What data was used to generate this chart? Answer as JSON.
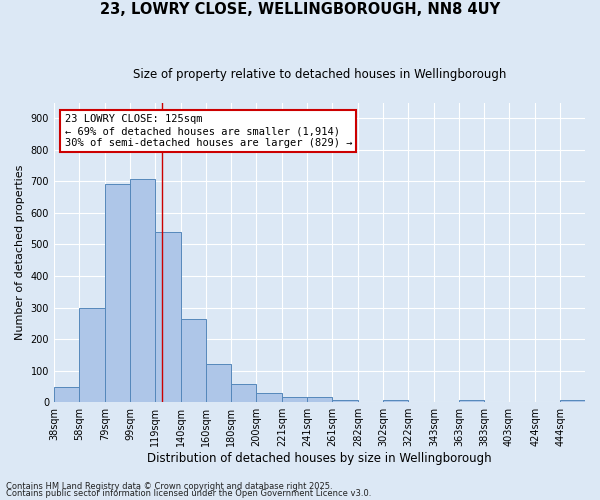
{
  "title1": "23, LOWRY CLOSE, WELLINGBOROUGH, NN8 4UY",
  "title2": "Size of property relative to detached houses in Wellingborough",
  "xlabel": "Distribution of detached houses by size in Wellingborough",
  "ylabel": "Number of detached properties",
  "bins": [
    38,
    58,
    79,
    99,
    119,
    140,
    160,
    180,
    200,
    221,
    241,
    261,
    282,
    302,
    322,
    343,
    363,
    383,
    403,
    424,
    444
  ],
  "counts": [
    48,
    300,
    693,
    707,
    540,
    265,
    120,
    58,
    28,
    15,
    18,
    7,
    0,
    8,
    0,
    0,
    8,
    0,
    0,
    0,
    8
  ],
  "bar_color": "#aec6e8",
  "bar_edge_color": "#5588bb",
  "property_size": 125,
  "annotation_title": "23 LOWRY CLOSE: 125sqm",
  "annotation_line1": "← 69% of detached houses are smaller (1,914)",
  "annotation_line2": "30% of semi-detached houses are larger (829) →",
  "annotation_box_color": "#ffffff",
  "annotation_border_color": "#cc0000",
  "vline_color": "#cc0000",
  "bg_color": "#dce8f5",
  "grid_color": "#ffffff",
  "ylim": [
    0,
    950
  ],
  "yticks": [
    0,
    100,
    200,
    300,
    400,
    500,
    600,
    700,
    800,
    900
  ],
  "footnote1": "Contains HM Land Registry data © Crown copyright and database right 2025.",
  "footnote2": "Contains public sector information licensed under the Open Government Licence v3.0."
}
